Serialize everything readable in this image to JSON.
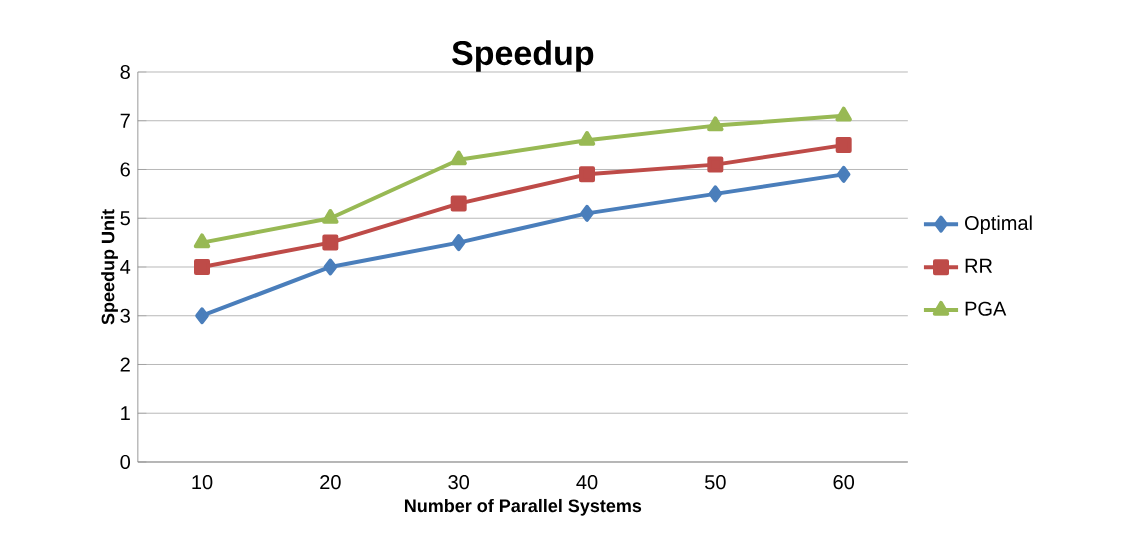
{
  "chart_data": {
    "type": "line",
    "title": "Speedup",
    "xlabel": "Number of Parallel Systems",
    "ylabel": "Speedup Unit",
    "categories": [
      "10",
      "20",
      "30",
      "40",
      "50",
      "60"
    ],
    "series": [
      {
        "name": "Optimal",
        "color": "#4a7ebb",
        "marker": "diamond",
        "values": [
          3,
          4,
          4.5,
          5.1,
          5.5,
          5.9
        ]
      },
      {
        "name": "RR",
        "color": "#be4b48",
        "marker": "square",
        "values": [
          4,
          4.5,
          5.3,
          5.9,
          6.1,
          6.5
        ]
      },
      {
        "name": "PGA",
        "color": "#98b954",
        "marker": "triangle",
        "values": [
          4.5,
          5,
          6.2,
          6.6,
          6.9,
          7.1
        ]
      }
    ],
    "ylim": [
      0,
      8
    ],
    "yticks": [
      0,
      1,
      2,
      3,
      4,
      5,
      6,
      7,
      8
    ],
    "grid": "y",
    "legend": "right",
    "line_style": "solid"
  }
}
